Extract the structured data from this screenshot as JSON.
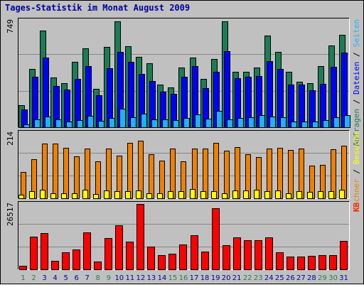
{
  "title": "Tages-Statistik im Monat August 2009",
  "colors": {
    "title": "#0000a0",
    "anfragen": "#1e7c55",
    "dateien": "#0000ff",
    "seiten": "#20b0ff",
    "besuche": "#f08000",
    "rechner": "#ffff00",
    "kb": "#ff0000",
    "weekday_label": "#0000a0",
    "weekend_label": "#208050"
  },
  "chart_data": [
    {
      "type": "bar",
      "panel": "top",
      "max_label": "749",
      "ymax": 749,
      "legend": [
        {
          "text": "Anfragen",
          "color": "#1e7c55"
        },
        {
          "text": " / ",
          "color": "#000000"
        },
        {
          "text": "Dateien",
          "color": "#0000ff"
        },
        {
          "text": " / ",
          "color": "#000000"
        },
        {
          "text": "Seiten",
          "color": "#20b0ff"
        }
      ],
      "categories": [
        "1",
        "2",
        "3",
        "4",
        "5",
        "6",
        "7",
        "8",
        "9",
        "10",
        "11",
        "12",
        "13",
        "14",
        "15",
        "16",
        "17",
        "18",
        "19",
        "20",
        "21",
        "22",
        "23",
        "24",
        "25",
        "26",
        "27",
        "28",
        "29",
        "30",
        "31"
      ],
      "series": [
        {
          "key": "anfragen",
          "color": "#1e7c55",
          "values": [
            155,
            410,
            680,
            350,
            310,
            460,
            555,
            270,
            565,
            745,
            570,
            495,
            450,
            300,
            280,
            420,
            490,
            340,
            480,
            745,
            390,
            390,
            420,
            645,
            530,
            390,
            320,
            310,
            430,
            575,
            650
          ]
        },
        {
          "key": "dateien",
          "color": "#0000ff",
          "values": [
            125,
            355,
            490,
            290,
            265,
            340,
            430,
            225,
            415,
            530,
            460,
            375,
            325,
            250,
            235,
            355,
            430,
            275,
            390,
            535,
            345,
            355,
            360,
            465,
            410,
            300,
            300,
            260,
            305,
            425,
            525
          ]
        },
        {
          "key": "seiten",
          "color": "#20b0ff",
          "values": [
            20,
            55,
            75,
            55,
            40,
            50,
            80,
            45,
            65,
            130,
            70,
            95,
            55,
            55,
            50,
            65,
            90,
            60,
            115,
            55,
            65,
            70,
            85,
            75,
            70,
            40,
            40,
            40,
            50,
            70,
            85
          ]
        }
      ]
    },
    {
      "type": "bar",
      "panel": "middle",
      "max_label": "214",
      "ymax": 214,
      "legend": [
        {
          "text": "Rechner",
          "color": "#f08000"
        },
        {
          "text": " / ",
          "color": "#000000"
        },
        {
          "text": "Besuche",
          "color": "#ffff00"
        }
      ],
      "series": [
        {
          "key": "besuche",
          "color": "#f08000",
          "values": [
            85,
            128,
            178,
            179,
            165,
            138,
            162,
            120,
            162,
            140,
            181,
            188,
            145,
            123,
            162,
            120,
            162,
            162,
            181,
            155,
            168,
            145,
            135,
            162,
            166,
            158,
            162,
            108,
            110,
            160,
            172
          ]
        },
        {
          "key": "rechner",
          "color": "#ffff00",
          "values": [
            12,
            23,
            27,
            17,
            17,
            17,
            27,
            15,
            25,
            23,
            23,
            26,
            17,
            17,
            23,
            23,
            30,
            23,
            23,
            17,
            25,
            25,
            27,
            23,
            25,
            17,
            23,
            20,
            23,
            23,
            27
          ]
        }
      ]
    },
    {
      "type": "bar",
      "panel": "bottom",
      "max_label": "26517",
      "ymax": 26517,
      "legend": [
        {
          "text": "KB",
          "color": "#ff0000"
        }
      ],
      "series": [
        {
          "key": "kb",
          "color": "#ff0000",
          "values": [
            1400,
            13300,
            14700,
            3500,
            6800,
            8000,
            15000,
            3100,
            12700,
            18000,
            11200,
            26500,
            9300,
            5800,
            6300,
            10200,
            13700,
            7200,
            24700,
            9700,
            13000,
            11900,
            11800,
            13000,
            7000,
            5100,
            5300,
            5500,
            5800,
            5800,
            11400
          ]
        }
      ]
    }
  ],
  "day_labels": [
    {
      "text": "1",
      "weekend": true
    },
    {
      "text": "2",
      "weekend": true
    },
    {
      "text": "3",
      "weekend": false
    },
    {
      "text": "4",
      "weekend": false
    },
    {
      "text": "5",
      "weekend": false
    },
    {
      "text": "6",
      "weekend": false
    },
    {
      "text": "7",
      "weekend": false
    },
    {
      "text": "8",
      "weekend": true
    },
    {
      "text": "9",
      "weekend": true
    },
    {
      "text": "10",
      "weekend": false
    },
    {
      "text": "11",
      "weekend": false
    },
    {
      "text": "12",
      "weekend": false
    },
    {
      "text": "13",
      "weekend": false
    },
    {
      "text": "14",
      "weekend": false
    },
    {
      "text": "15",
      "weekend": true
    },
    {
      "text": "16",
      "weekend": true
    },
    {
      "text": "17",
      "weekend": false
    },
    {
      "text": "18",
      "weekend": false
    },
    {
      "text": "19",
      "weekend": false
    },
    {
      "text": "20",
      "weekend": false
    },
    {
      "text": "21",
      "weekend": false
    },
    {
      "text": "22",
      "weekend": true
    },
    {
      "text": "23",
      "weekend": true
    },
    {
      "text": "24",
      "weekend": false
    },
    {
      "text": "25",
      "weekend": false
    },
    {
      "text": "26",
      "weekend": false
    },
    {
      "text": "27",
      "weekend": false
    },
    {
      "text": "28",
      "weekend": false
    },
    {
      "text": "29",
      "weekend": true
    },
    {
      "text": "30",
      "weekend": true
    },
    {
      "text": "31",
      "weekend": false
    }
  ]
}
